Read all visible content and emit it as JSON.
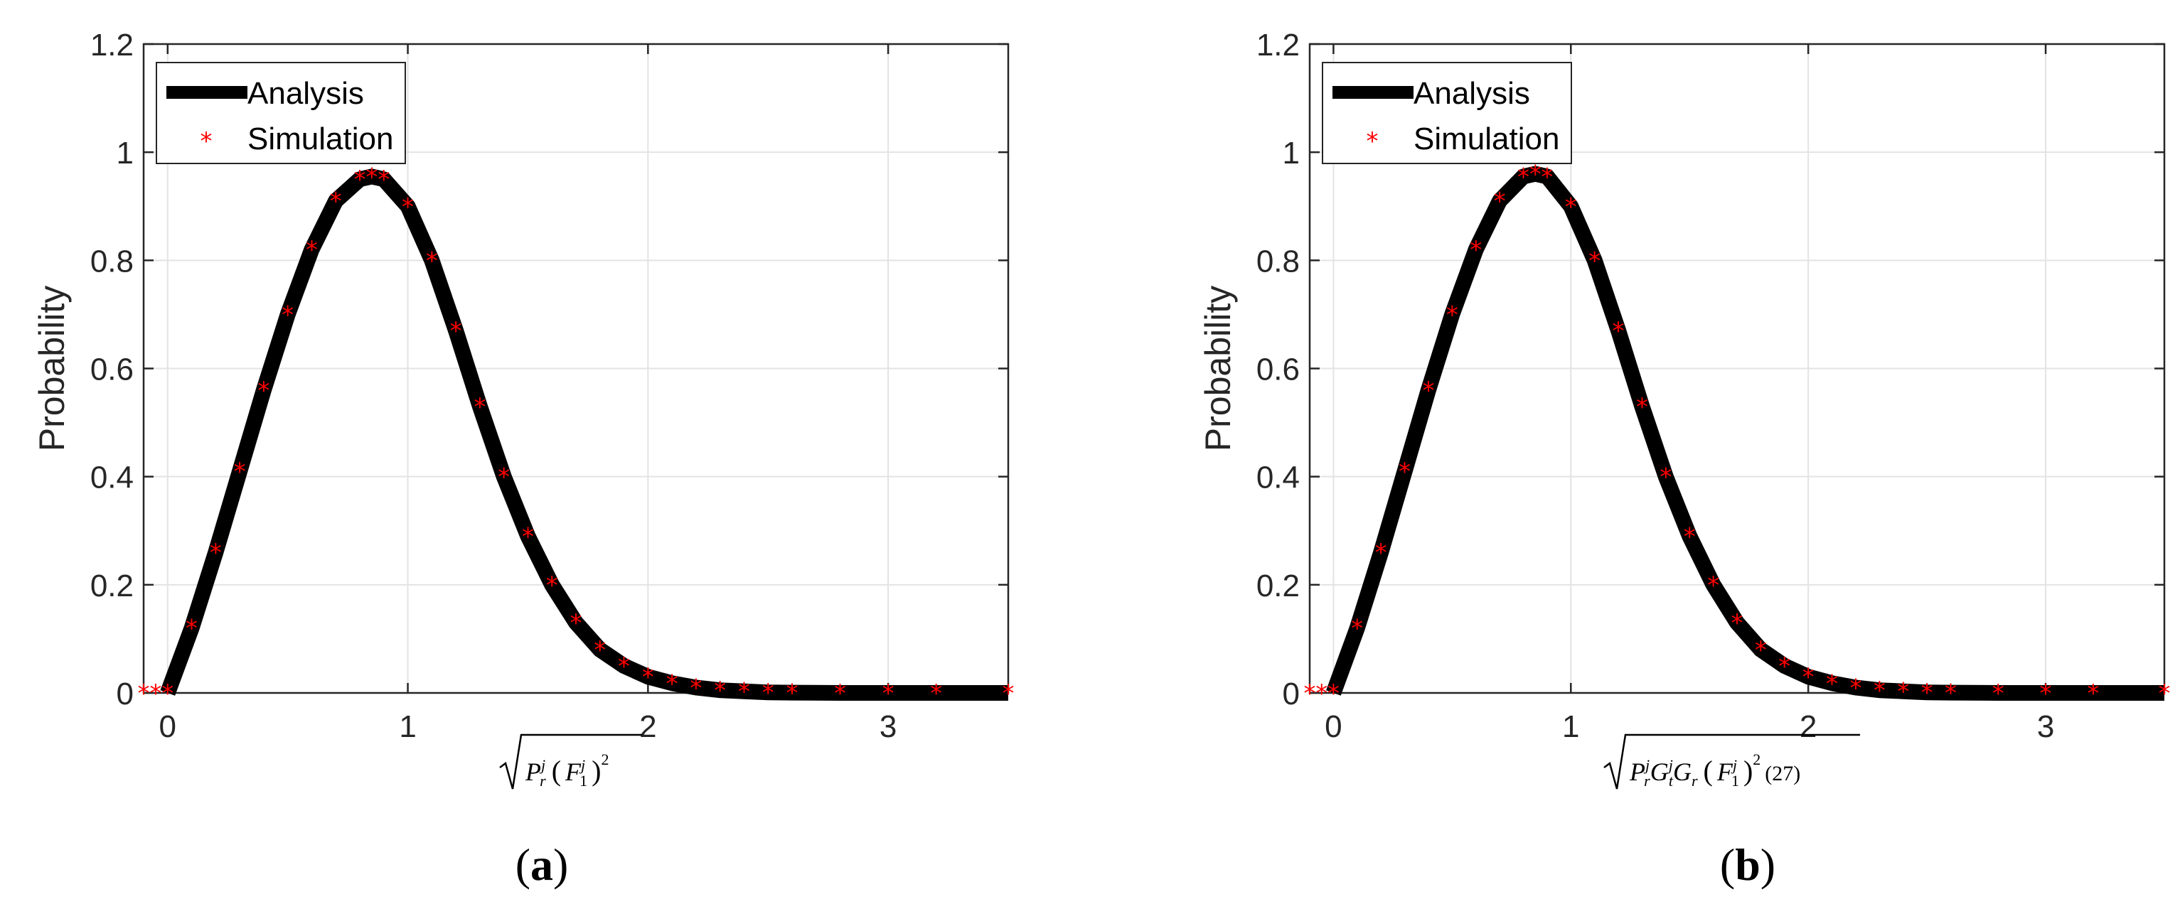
{
  "chart_data": [
    {
      "type": "line",
      "panel_label": "a",
      "ylabel": "Probability",
      "xlabel": "√(P_r^j (F_1^j)^2)",
      "xlabel_parts": {
        "P": "P",
        "P_sub": "r",
        "P_sup": "j",
        "F": "F",
        "F_sub": "1",
        "F_sup": "j",
        "outer_sup": "2",
        "suffix": ""
      },
      "xlim": [
        -0.1,
        3.5
      ],
      "ylim": [
        0,
        1.2
      ],
      "xticks": [
        0,
        1,
        2,
        3
      ],
      "xtick_labels": [
        "0",
        "1",
        "2",
        "3"
      ],
      "yticks": [
        0,
        0.2,
        0.4,
        0.6,
        0.8,
        1.0,
        1.2
      ],
      "ytick_labels": [
        "0",
        "0.2",
        "0.4",
        "0.6",
        "0.8",
        "1",
        "1.2"
      ],
      "grid": true,
      "legend_position": "top-left",
      "series": [
        {
          "name": "Analysis",
          "style": "solid-line",
          "color": "#000000",
          "x": [
            0,
            0.1,
            0.2,
            0.3,
            0.4,
            0.5,
            0.6,
            0.7,
            0.8,
            0.85,
            0.9,
            1.0,
            1.1,
            1.2,
            1.3,
            1.4,
            1.5,
            1.6,
            1.7,
            1.8,
            1.9,
            2.0,
            2.1,
            2.2,
            2.3,
            2.4,
            2.5,
            2.6,
            2.8,
            3.0,
            3.2,
            3.5
          ],
          "y": [
            0,
            0.12,
            0.26,
            0.41,
            0.56,
            0.7,
            0.82,
            0.91,
            0.95,
            0.955,
            0.95,
            0.9,
            0.8,
            0.67,
            0.53,
            0.4,
            0.29,
            0.2,
            0.13,
            0.08,
            0.05,
            0.03,
            0.018,
            0.01,
            0.005,
            0.003,
            0.001,
            0.0005,
            0,
            0,
            0,
            0
          ]
        },
        {
          "name": "Simulation",
          "style": "asterisk-markers",
          "color": "#ff0000",
          "x": [
            -0.1,
            -0.05,
            0,
            0.1,
            0.2,
            0.3,
            0.4,
            0.5,
            0.6,
            0.7,
            0.8,
            0.85,
            0.9,
            1.0,
            1.1,
            1.2,
            1.3,
            1.4,
            1.5,
            1.6,
            1.7,
            1.8,
            1.9,
            2.0,
            2.1,
            2.2,
            2.3,
            2.4,
            2.5,
            2.6,
            2.8,
            3.0,
            3.2,
            3.5
          ],
          "y": [
            0,
            0,
            0,
            0.12,
            0.26,
            0.41,
            0.56,
            0.7,
            0.82,
            0.91,
            0.95,
            0.955,
            0.95,
            0.9,
            0.8,
            0.67,
            0.53,
            0.4,
            0.29,
            0.2,
            0.13,
            0.08,
            0.05,
            0.03,
            0.018,
            0.01,
            0.005,
            0.003,
            0.001,
            0.0005,
            0,
            0,
            0,
            0
          ]
        }
      ]
    },
    {
      "type": "line",
      "panel_label": "b",
      "ylabel": "Probability",
      "xlabel": "√(P_r^j G_t^j G_r (F_1^j)^2 (27))",
      "xlabel_parts": {
        "P": "P",
        "P_sub": "r",
        "P_sup": "j",
        "G1": "G",
        "G1_sub": "t",
        "G1_sup": "j",
        "G2": "G",
        "G2_sub": "r",
        "F": "F",
        "F_sub": "1",
        "F_sup": "j",
        "outer_sup": "2",
        "suffix": "(27)"
      },
      "xlim": [
        -0.1,
        3.5
      ],
      "ylim": [
        0,
        1.2
      ],
      "xticks": [
        0,
        1,
        2,
        3
      ],
      "xtick_labels": [
        "0",
        "1",
        "2",
        "3"
      ],
      "yticks": [
        0,
        0.2,
        0.4,
        0.6,
        0.8,
        1.0,
        1.2
      ],
      "ytick_labels": [
        "0",
        "0.2",
        "0.4",
        "0.6",
        "0.8",
        "1",
        "1.2"
      ],
      "grid": true,
      "legend_position": "top-left",
      "series": [
        {
          "name": "Analysis",
          "style": "solid-line",
          "color": "#000000",
          "x": [
            0,
            0.1,
            0.2,
            0.3,
            0.4,
            0.5,
            0.6,
            0.7,
            0.8,
            0.85,
            0.9,
            1.0,
            1.1,
            1.2,
            1.3,
            1.4,
            1.5,
            1.6,
            1.7,
            1.8,
            1.9,
            2.0,
            2.1,
            2.2,
            2.3,
            2.4,
            2.5,
            2.6,
            2.8,
            3.0,
            3.2,
            3.5
          ],
          "y": [
            0,
            0.12,
            0.26,
            0.41,
            0.56,
            0.7,
            0.82,
            0.91,
            0.955,
            0.96,
            0.955,
            0.9,
            0.8,
            0.67,
            0.53,
            0.4,
            0.29,
            0.2,
            0.13,
            0.08,
            0.05,
            0.03,
            0.018,
            0.01,
            0.005,
            0.003,
            0.001,
            0.0005,
            0,
            0,
            0,
            0
          ]
        },
        {
          "name": "Simulation",
          "style": "asterisk-markers",
          "color": "#ff0000",
          "x": [
            -0.1,
            -0.05,
            0,
            0.1,
            0.2,
            0.3,
            0.4,
            0.5,
            0.6,
            0.7,
            0.8,
            0.85,
            0.9,
            1.0,
            1.1,
            1.2,
            1.3,
            1.4,
            1.5,
            1.6,
            1.7,
            1.8,
            1.9,
            2.0,
            2.1,
            2.2,
            2.3,
            2.4,
            2.5,
            2.6,
            2.8,
            3.0,
            3.2,
            3.5
          ],
          "y": [
            0,
            0,
            0,
            0.12,
            0.26,
            0.41,
            0.56,
            0.7,
            0.82,
            0.91,
            0.955,
            0.96,
            0.955,
            0.9,
            0.8,
            0.67,
            0.53,
            0.4,
            0.29,
            0.2,
            0.13,
            0.08,
            0.05,
            0.03,
            0.018,
            0.01,
            0.005,
            0.003,
            0.001,
            0.0005,
            0,
            0,
            0,
            0
          ]
        }
      ]
    }
  ],
  "legend": {
    "analysis_label": "Analysis",
    "simulation_label": "Simulation",
    "marker_glyph": "*"
  },
  "colors": {
    "axis": "#262626",
    "grid": "#e3e3e3",
    "analysis": "#000000",
    "simulation": "#ff0000"
  }
}
